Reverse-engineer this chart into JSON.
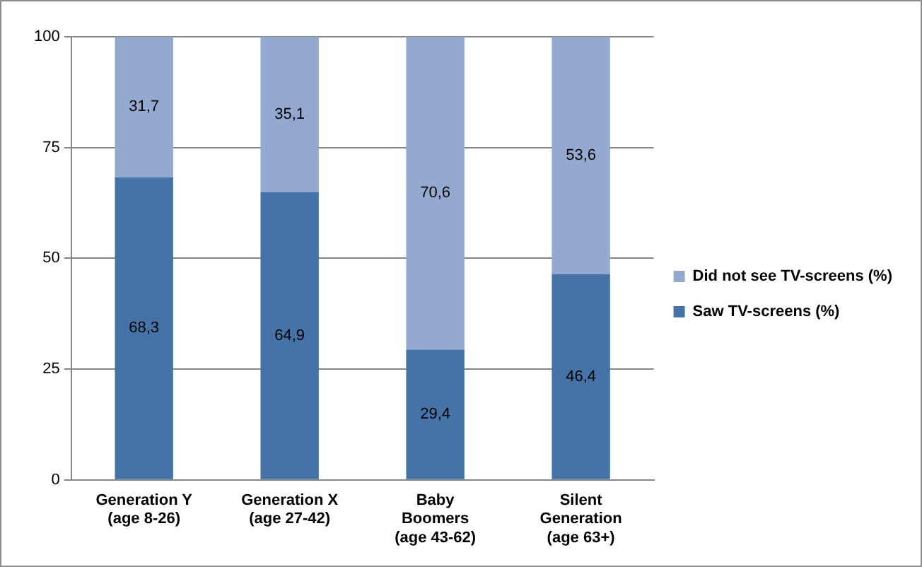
{
  "chart_data": {
    "type": "bar",
    "stacked": true,
    "categories": [
      "Generation Y\n(age 8-26)",
      "Generation X\n(age 27-42)",
      "Baby\nBoomers\n(age 43-62)",
      "Silent\nGeneration\n(age 63+)"
    ],
    "series": [
      {
        "name": "Saw TV-screens (%)",
        "color": "#4572a7",
        "values": [
          68.3,
          64.9,
          29.4,
          46.4
        ],
        "value_labels": [
          "68,3",
          "64,9",
          "29,4",
          "46,4"
        ]
      },
      {
        "name": "Did not see TV-screens (%)",
        "color": "#93a9d0",
        "values": [
          31.7,
          35.1,
          70.6,
          53.6
        ],
        "value_labels": [
          "31,7",
          "35,1",
          "70,6",
          "53,6"
        ]
      }
    ],
    "ylim": [
      0,
      100
    ],
    "yticks": [
      0,
      25,
      50,
      75,
      100
    ],
    "grid": "y",
    "legend": "right"
  }
}
